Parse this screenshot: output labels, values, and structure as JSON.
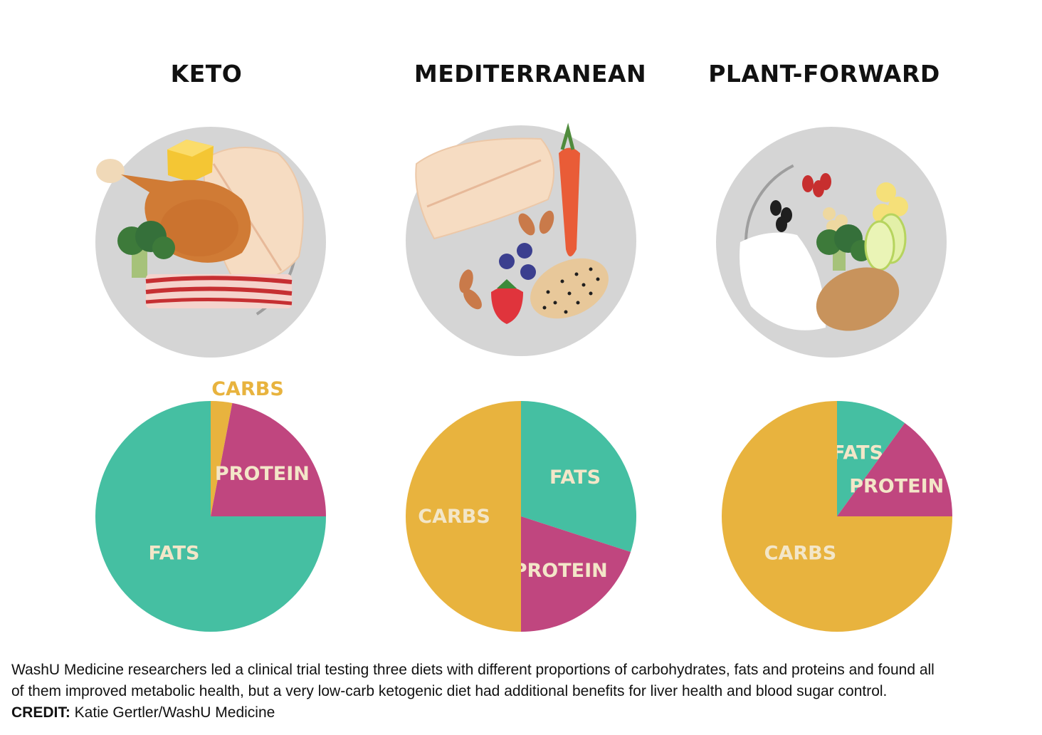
{
  "titles": [
    "KETO",
    "MEDITERRANEAN",
    "PLANT-FORWARD"
  ],
  "colors": {
    "carbs": "#e8b33e",
    "fats": "#45bfa2",
    "protein": "#c0467f",
    "label_text": "#f3e6c8",
    "plate": "#d5d5d5"
  },
  "plates": [
    {
      "diet": "KETO",
      "foods": [
        "butter",
        "fish-fillet",
        "chicken-drumstick",
        "broccoli",
        "bacon"
      ]
    },
    {
      "diet": "MEDITERRANEAN",
      "foods": [
        "fish-fillet",
        "carrot",
        "almonds",
        "blueberries",
        "strawberry",
        "whole-grain-bread"
      ]
    },
    {
      "diet": "PLANT-FORWARD",
      "foods": [
        "beans",
        "banana",
        "rice",
        "broccoli",
        "chickpeas",
        "apple-slices",
        "potato"
      ]
    }
  ],
  "chart_data": [
    {
      "type": "pie",
      "title": "KETO",
      "slices": [
        {
          "label": "CARBS",
          "value": 3
        },
        {
          "label": "PROTEIN",
          "value": 22
        },
        {
          "label": "FATS",
          "value": 75
        }
      ]
    },
    {
      "type": "pie",
      "title": "MEDITERRANEAN",
      "slices": [
        {
          "label": "FATS",
          "value": 30
        },
        {
          "label": "PROTEIN",
          "value": 20
        },
        {
          "label": "CARBS",
          "value": 50
        }
      ]
    },
    {
      "type": "pie",
      "title": "PLANT-FORWARD",
      "slices": [
        {
          "label": "FATS",
          "value": 10
        },
        {
          "label": "PROTEIN",
          "value": 15
        },
        {
          "label": "CARBS",
          "value": 75
        }
      ]
    }
  ],
  "caption": {
    "line1": "WashU Medicine researchers led a clinical trial testing three diets with different proportions of carbohydrates, fats and proteins and found all",
    "line2": "of them improved metabolic health, but a very low-carb ketogenic diet had additional benefits for liver health and blood sugar control.",
    "credit_label": "CREDIT:",
    "credit_value": " Katie Gertler/WashU Medicine"
  }
}
